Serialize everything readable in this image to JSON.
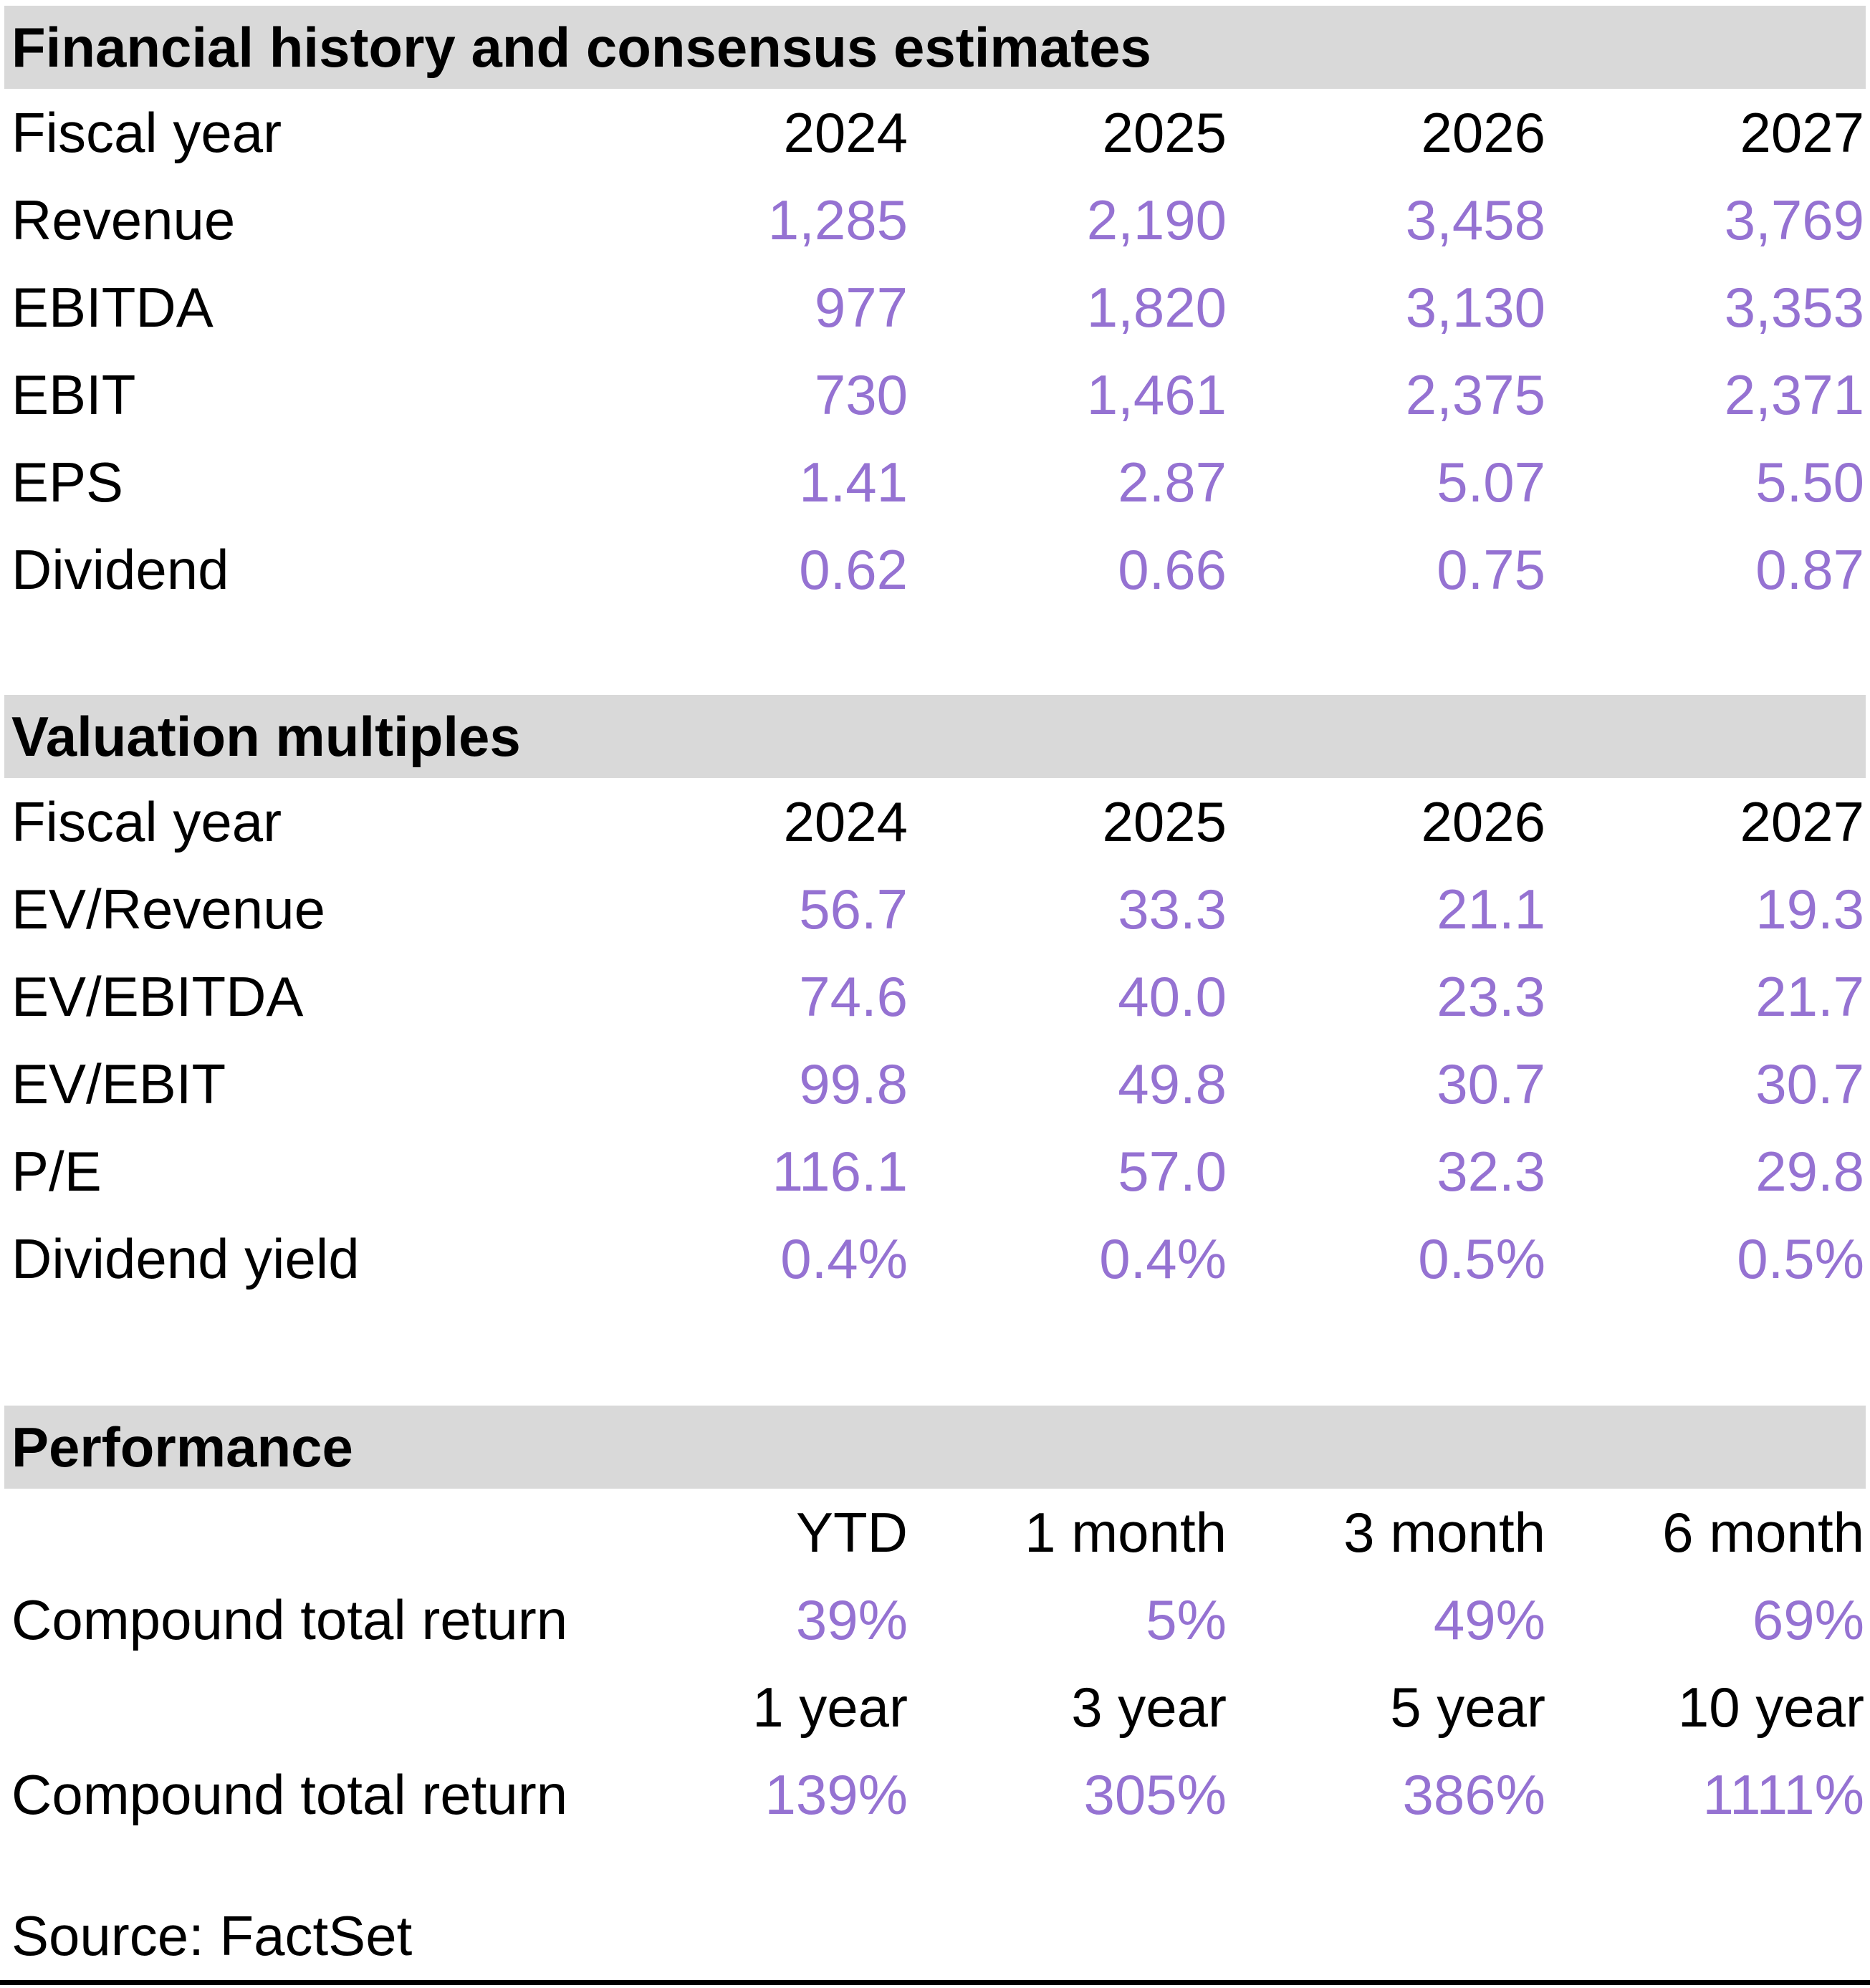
{
  "accent_color": "#9572d2",
  "header_bg": "#d9d9d9",
  "sections": {
    "financials": {
      "title": "Financial history and consensus estimates",
      "col_header_label": "Fiscal year",
      "columns": [
        "2024",
        "2025",
        "2026",
        "2027"
      ],
      "rows": [
        {
          "label": "Revenue",
          "values": [
            "1,285",
            "2,190",
            "3,458",
            "3,769"
          ]
        },
        {
          "label": "EBITDA",
          "values": [
            "977",
            "1,820",
            "3,130",
            "3,353"
          ]
        },
        {
          "label": "EBIT",
          "values": [
            "730",
            "1,461",
            "2,375",
            "2,371"
          ]
        },
        {
          "label": "EPS",
          "values": [
            "1.41",
            "2.87",
            "5.07",
            "5.50"
          ]
        },
        {
          "label": "Dividend",
          "values": [
            "0.62",
            "0.66",
            "0.75",
            "0.87"
          ]
        }
      ]
    },
    "valuation": {
      "title": "Valuation multiples",
      "col_header_label": "Fiscal year",
      "columns": [
        "2024",
        "2025",
        "2026",
        "2027"
      ],
      "rows": [
        {
          "label": "EV/Revenue",
          "values": [
            "56.7",
            "33.3",
            "21.1",
            "19.3"
          ]
        },
        {
          "label": "EV/EBITDA",
          "values": [
            "74.6",
            "40.0",
            "23.3",
            "21.7"
          ]
        },
        {
          "label": "EV/EBIT",
          "values": [
            "99.8",
            "49.8",
            "30.7",
            "30.7"
          ]
        },
        {
          "label": "P/E",
          "values": [
            "116.1",
            "57.0",
            "32.3",
            "29.8"
          ]
        },
        {
          "label": "Dividend yield",
          "values": [
            "0.4%",
            "0.4%",
            "0.5%",
            "0.5%"
          ]
        }
      ]
    },
    "performance": {
      "title": "Performance",
      "groups": [
        {
          "columns": [
            "YTD",
            "1 month",
            "3 month",
            "6 month"
          ],
          "row_label": "Compound total return",
          "values": [
            "39%",
            "5%",
            "49%",
            "69%"
          ]
        },
        {
          "columns": [
            "1 year",
            "3 year",
            "5 year",
            "10 year"
          ],
          "row_label": "Compound total return",
          "values": [
            "139%",
            "305%",
            "386%",
            "1111%"
          ]
        }
      ]
    }
  },
  "footer": {
    "source": "Source: FactSet"
  }
}
